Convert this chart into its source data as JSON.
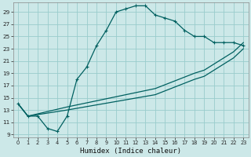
{
  "xlabel": "Humidex (Indice chaleur)",
  "bg_color": "#cce8e8",
  "line_color": "#006060",
  "grid_color": "#99cccc",
  "xlim": [
    -0.5,
    23.5
  ],
  "ylim": [
    8.5,
    30.5
  ],
  "yticks": [
    9,
    11,
    13,
    15,
    17,
    19,
    21,
    23,
    25,
    27,
    29
  ],
  "xticks": [
    0,
    1,
    2,
    3,
    4,
    5,
    6,
    7,
    8,
    9,
    10,
    11,
    12,
    13,
    14,
    15,
    16,
    17,
    18,
    19,
    20,
    21,
    22,
    23
  ],
  "line1_x": [
    0,
    1,
    2,
    3,
    4,
    5,
    6,
    7,
    8,
    9,
    10,
    11,
    12,
    13,
    14,
    15,
    16,
    17,
    18,
    19,
    20,
    21,
    22,
    23
  ],
  "line1_y": [
    14,
    12,
    12,
    10,
    9.5,
    12,
    18,
    20,
    23.5,
    26,
    29,
    29.5,
    30,
    30,
    28.5,
    28,
    27.5,
    26,
    25,
    25,
    24,
    24,
    24,
    23.5
  ],
  "line2_x": [
    0,
    1,
    5,
    14,
    18,
    19,
    20,
    21,
    22,
    23
  ],
  "line2_y": [
    14,
    12,
    13.5,
    16.5,
    19,
    19.5,
    20.5,
    21.5,
    22.5,
    24
  ],
  "line3_x": [
    0,
    1,
    5,
    14,
    18,
    19,
    20,
    21,
    22,
    23
  ],
  "line3_y": [
    14,
    12,
    13.0,
    15.5,
    18,
    18.5,
    19.5,
    20.5,
    21.5,
    23
  ]
}
